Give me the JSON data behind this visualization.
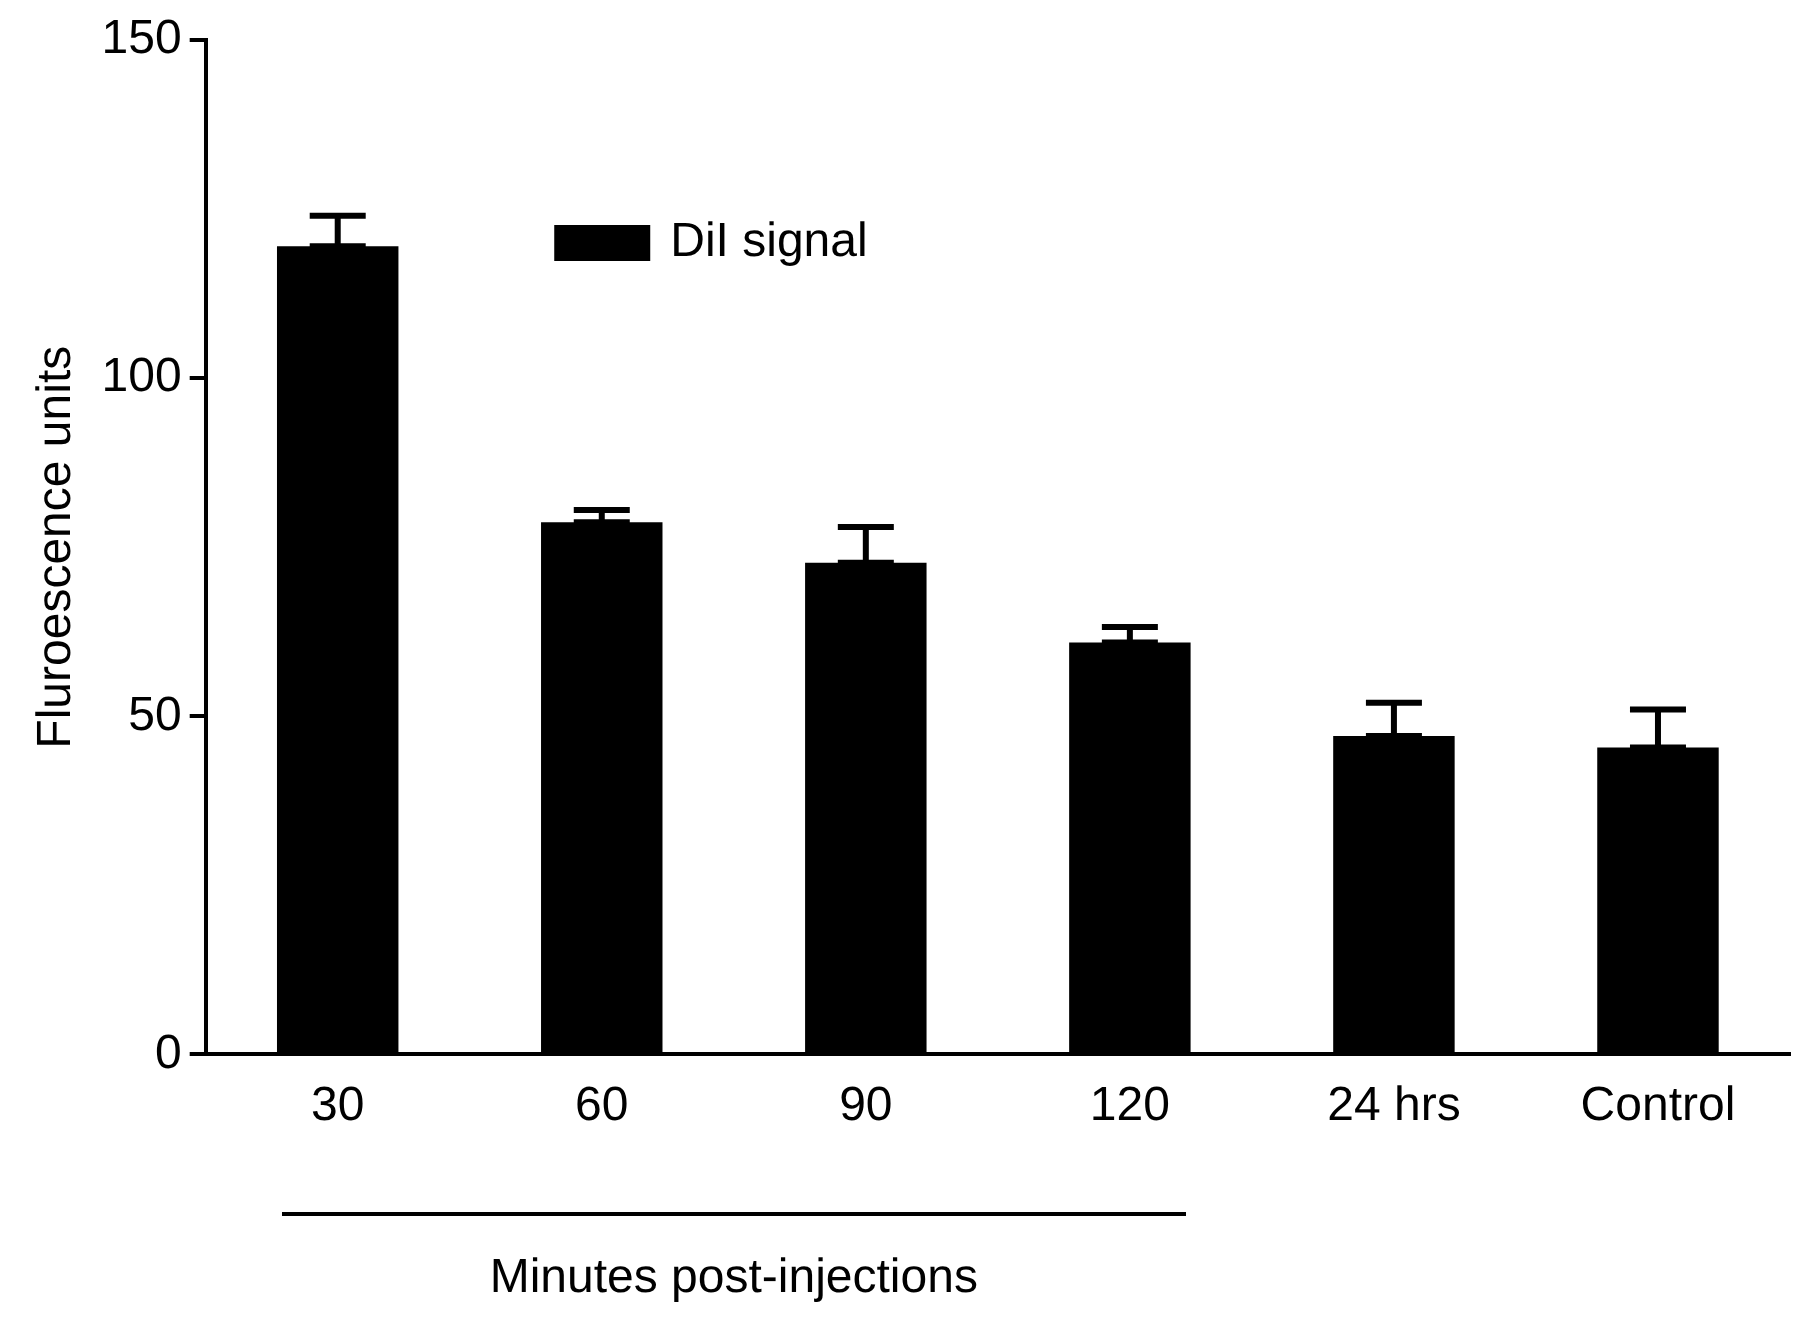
{
  "chart_data": {
    "type": "bar",
    "categories": [
      "30",
      "60",
      "90",
      "120",
      "24 hrs",
      "Control"
    ],
    "series": [
      {
        "name": "DiI signal",
        "color": "#000000",
        "values": [
          119.5,
          78.7,
          72.7,
          60.9,
          47.1,
          45.4
        ],
        "errors": [
          [
            119.5,
            124
          ],
          [
            78.7,
            80.5
          ],
          [
            72.7,
            78
          ],
          [
            60.9,
            63.2
          ],
          [
            47.1,
            52
          ],
          [
            45.4,
            51
          ]
        ]
      }
    ],
    "ylabel": "Fluroescence units",
    "xlabel": "Minutes post-injections",
    "ylim": [
      0,
      150
    ],
    "yticks": [
      0,
      50,
      100,
      150
    ],
    "grid": false,
    "legend": "top"
  }
}
